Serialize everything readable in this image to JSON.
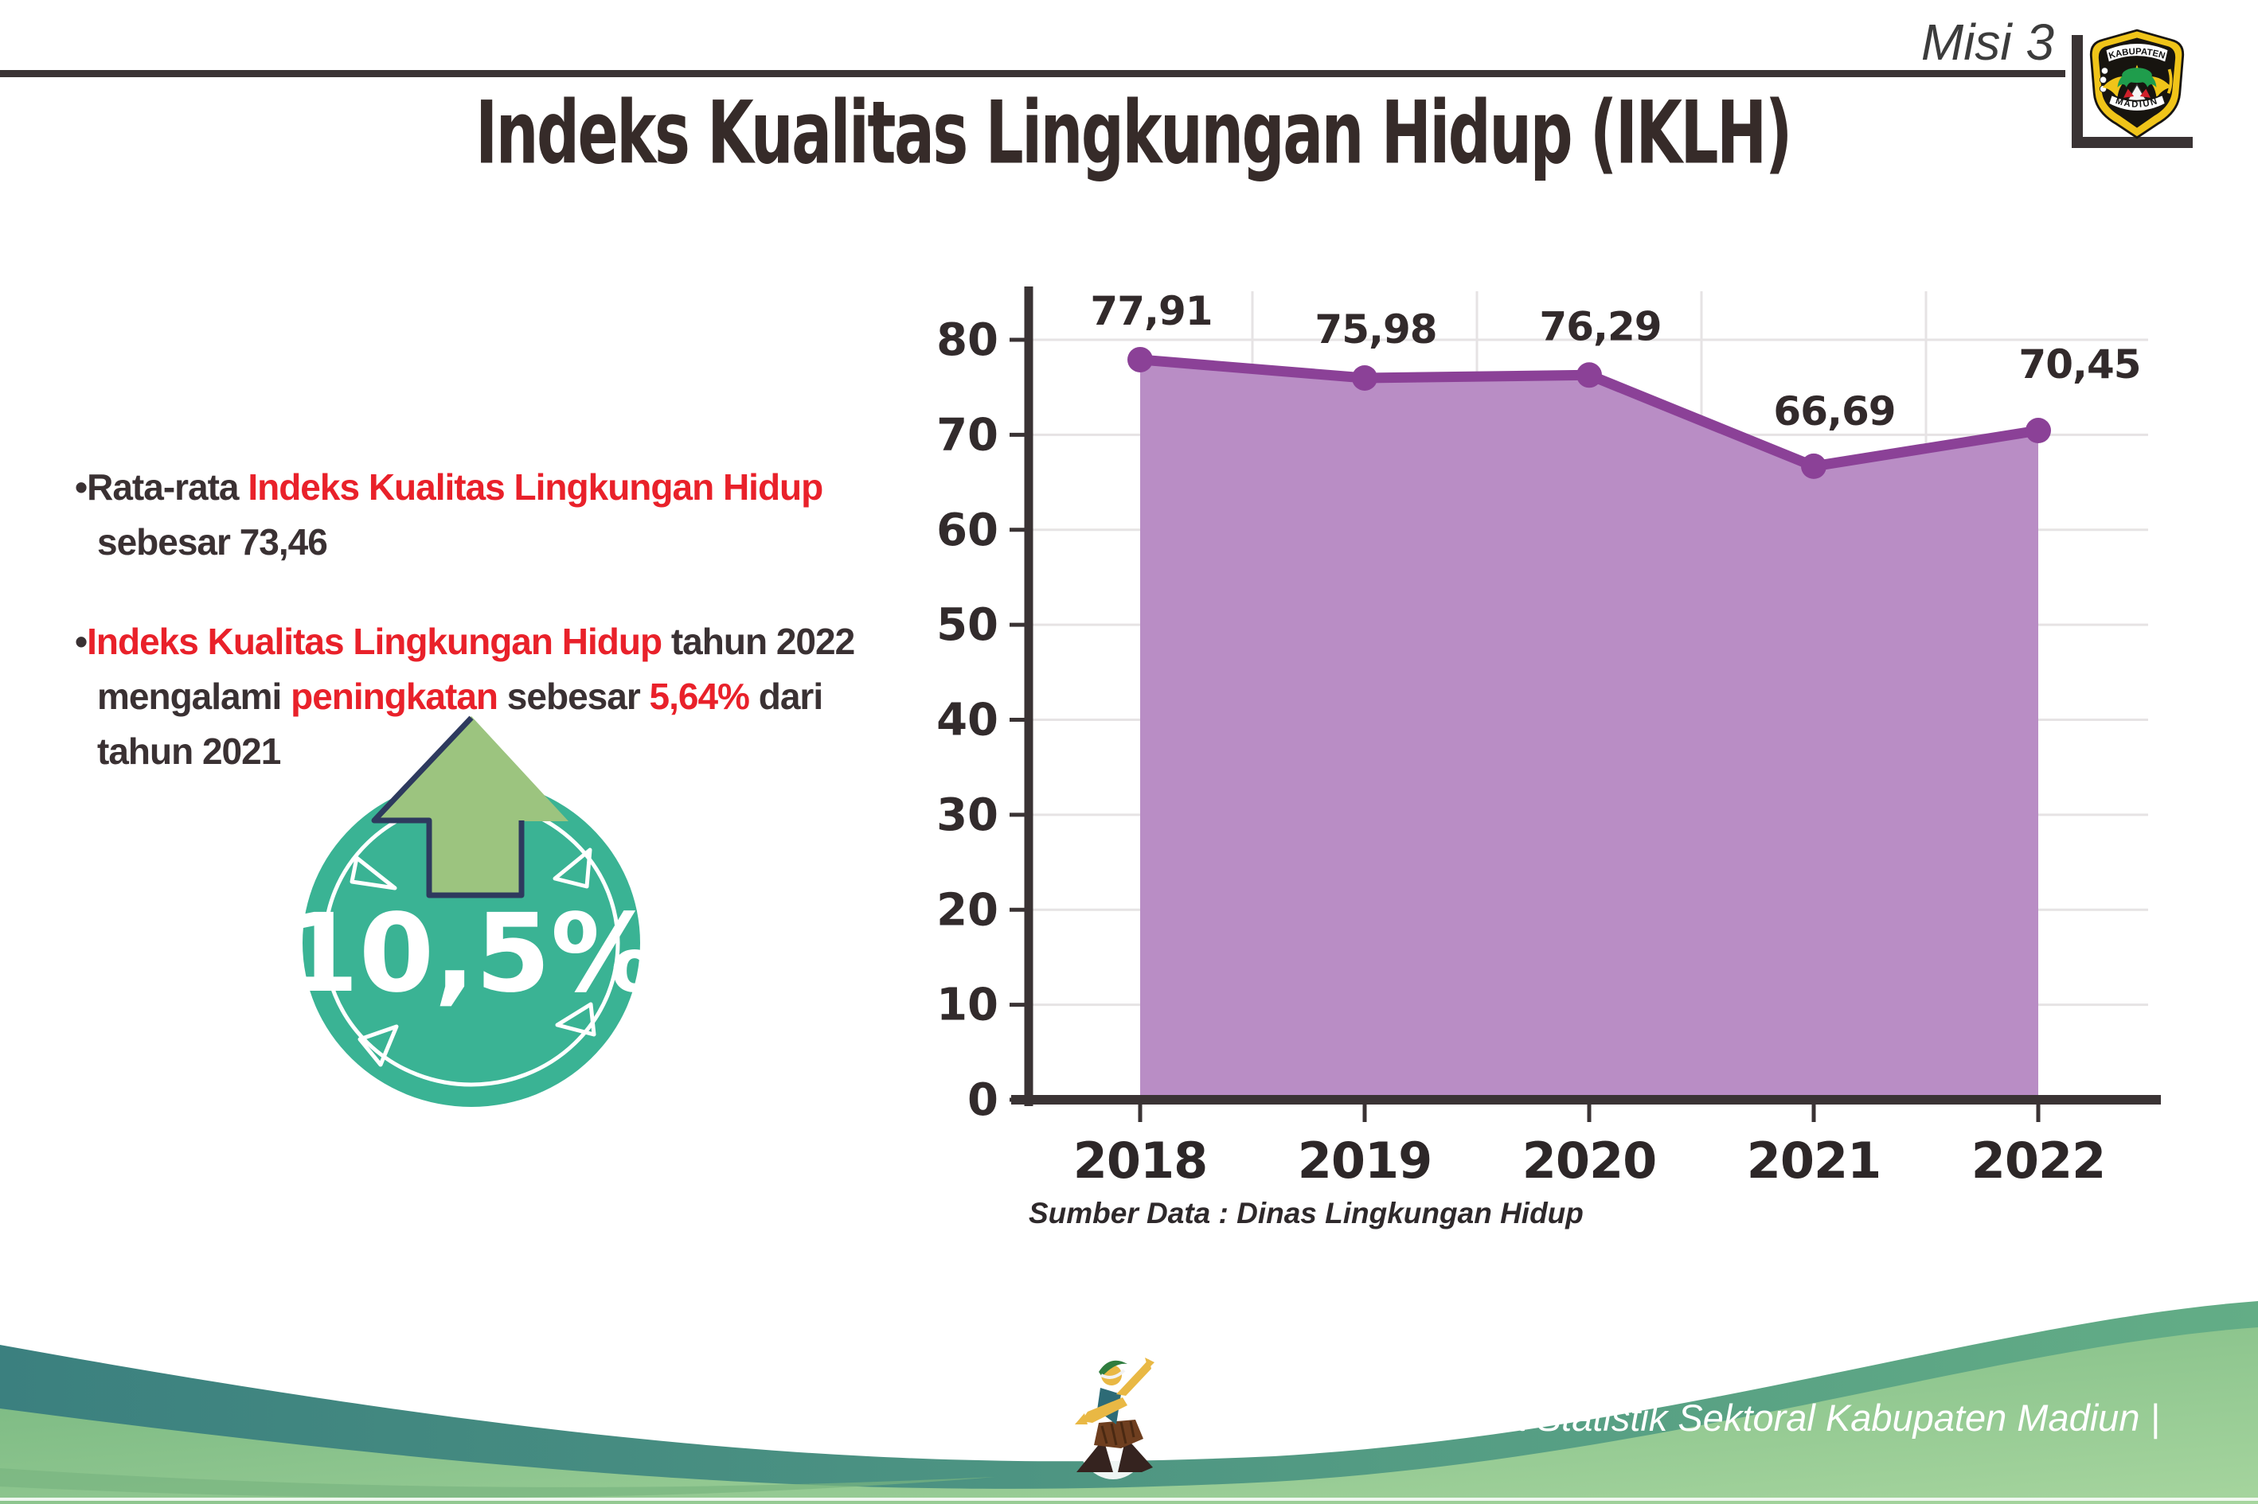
{
  "header": {
    "misi": "Misi 3",
    "logo": {
      "top_text": "KABUPATEN",
      "bottom_text": "MADIUN"
    }
  },
  "title": "Indeks Kualitas Lingkungan Hidup (IKLH)",
  "bullets": [
    {
      "segments": [
        {
          "text": "Rata-rata ",
          "color": "dark"
        },
        {
          "text": "Indeks Kualitas Lingkungan Hidup",
          "color": "red"
        },
        {
          "text": "\nsebesar 73,46",
          "color": "dark"
        }
      ]
    },
    {
      "segments": [
        {
          "text": "Indeks Kualitas Lingkungan Hidup",
          "color": "red"
        },
        {
          "text": " tahun 2022\nmengalami ",
          "color": "dark"
        },
        {
          "text": "peningkatan",
          "color": "red"
        },
        {
          "text": " sebesar ",
          "color": "dark"
        },
        {
          "text": "5,64%",
          "color": "red"
        },
        {
          "text": " dari\ntahun 2021",
          "color": "dark"
        }
      ]
    }
  ],
  "badge": {
    "value": "10,5%",
    "direction": "up-arrow"
  },
  "chart_data": {
    "type": "area",
    "title": "",
    "categories": [
      "2018",
      "2019",
      "2020",
      "2021",
      "2022"
    ],
    "values": [
      77.91,
      75.98,
      76.29,
      66.69,
      70.45
    ],
    "value_labels": [
      "77,91",
      "75,98",
      "76,29",
      "66,69",
      "70,45"
    ],
    "xlabel": "",
    "ylabel": "",
    "ylim": [
      0,
      80
    ],
    "yticks": [
      0,
      10,
      20,
      30,
      40,
      50,
      60,
      70,
      80
    ],
    "grid": true,
    "legend": "none",
    "line_color": "#8b4197",
    "fill_color": "#b98dc5",
    "source_note": "Sumber Data : Dinas Lingkungan Hidup"
  },
  "footer": {
    "caption": "Media Infografis Data Statistik Sektoral Kabupaten Madiun |"
  },
  "colors": {
    "accent_red": "#e9212a",
    "text_dark": "#3a3133",
    "badge_teal": "#3ab394",
    "arrow_green": "#9cc47f",
    "arrow_outline": "#2e3a5e",
    "axis_dark": "#3a3334",
    "gridline": "#e6e3e4"
  }
}
